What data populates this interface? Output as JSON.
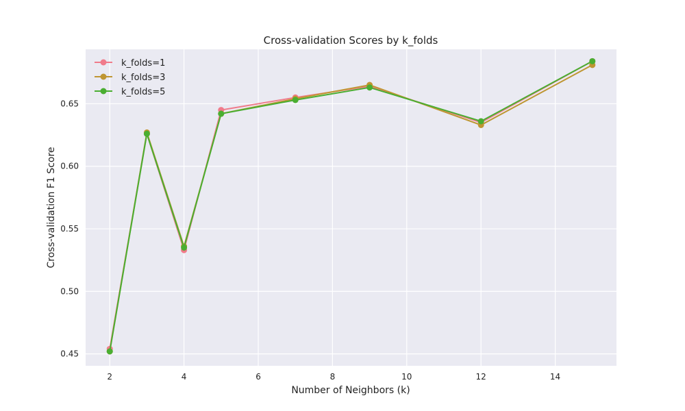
{
  "chart_data": {
    "type": "line",
    "title": "Cross-validation Scores by k_folds",
    "xlabel": "Number of Neighbors (k)",
    "ylabel": "Cross-validation F1 Score",
    "xlim": [
      1.35,
      15.65
    ],
    "ylim": [
      0.4405,
      0.6935
    ],
    "xticks": [
      2,
      4,
      6,
      8,
      10,
      12,
      14
    ],
    "yticks": [
      0.45,
      0.5,
      0.55,
      0.6,
      0.65
    ],
    "ytick_labels": [
      "0.45",
      "0.50",
      "0.55",
      "0.60",
      "0.65"
    ],
    "grid": true,
    "legend_position": "top-left",
    "x": [
      2,
      3,
      4,
      5,
      7,
      9,
      12,
      15
    ],
    "series": [
      {
        "name": "k_folds=1",
        "color": "#f07b8a",
        "values": [
          0.454,
          0.626,
          0.533,
          0.645,
          0.655,
          0.664,
          0.635,
          0.684
        ]
      },
      {
        "name": "k_folds=3",
        "color": "#bf9632",
        "values": [
          0.452,
          0.627,
          0.536,
          0.642,
          0.654,
          0.665,
          0.633,
          0.681
        ]
      },
      {
        "name": "k_folds=5",
        "color": "#4aae31",
        "values": [
          0.452,
          0.626,
          0.535,
          0.642,
          0.653,
          0.663,
          0.636,
          0.684
        ]
      }
    ]
  }
}
